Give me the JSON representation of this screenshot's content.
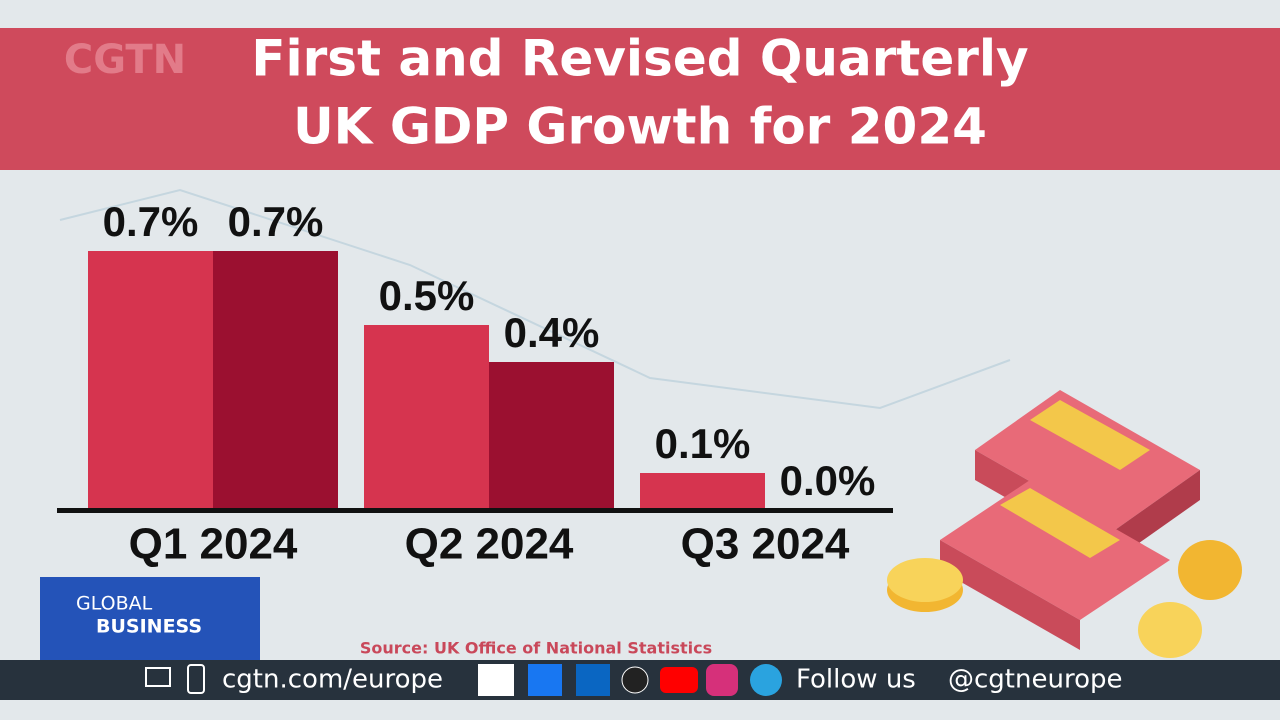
{
  "chart_data": {
    "type": "bar",
    "title": "First and Revised Quarterly",
    "subtitle": "UK GDP Growth for 2024",
    "categories": [
      "Q1 2024",
      "Q2 2024",
      "Q3 2024"
    ],
    "series": [
      {
        "color": "#d6344f",
        "values": [
          0.7,
          0.5,
          0.1
        ],
        "value_labels": [
          "0.7%",
          "0.5%",
          "0.1%"
        ]
      },
      {
        "color": "#9b1030",
        "values": [
          0.7,
          0.4,
          0.0
        ],
        "value_labels": [
          "0.7%",
          "0.4%",
          "0.0%"
        ]
      }
    ],
    "source": "Source: UK Office of National Statistics"
  },
  "overlay": {
    "logo": "CGTN",
    "program": [
      "GLOBAL",
      "BUSINESS"
    ],
    "website": "cgtn.com/europe",
    "follow": "Follow us",
    "handle": "@cgtneurope"
  }
}
